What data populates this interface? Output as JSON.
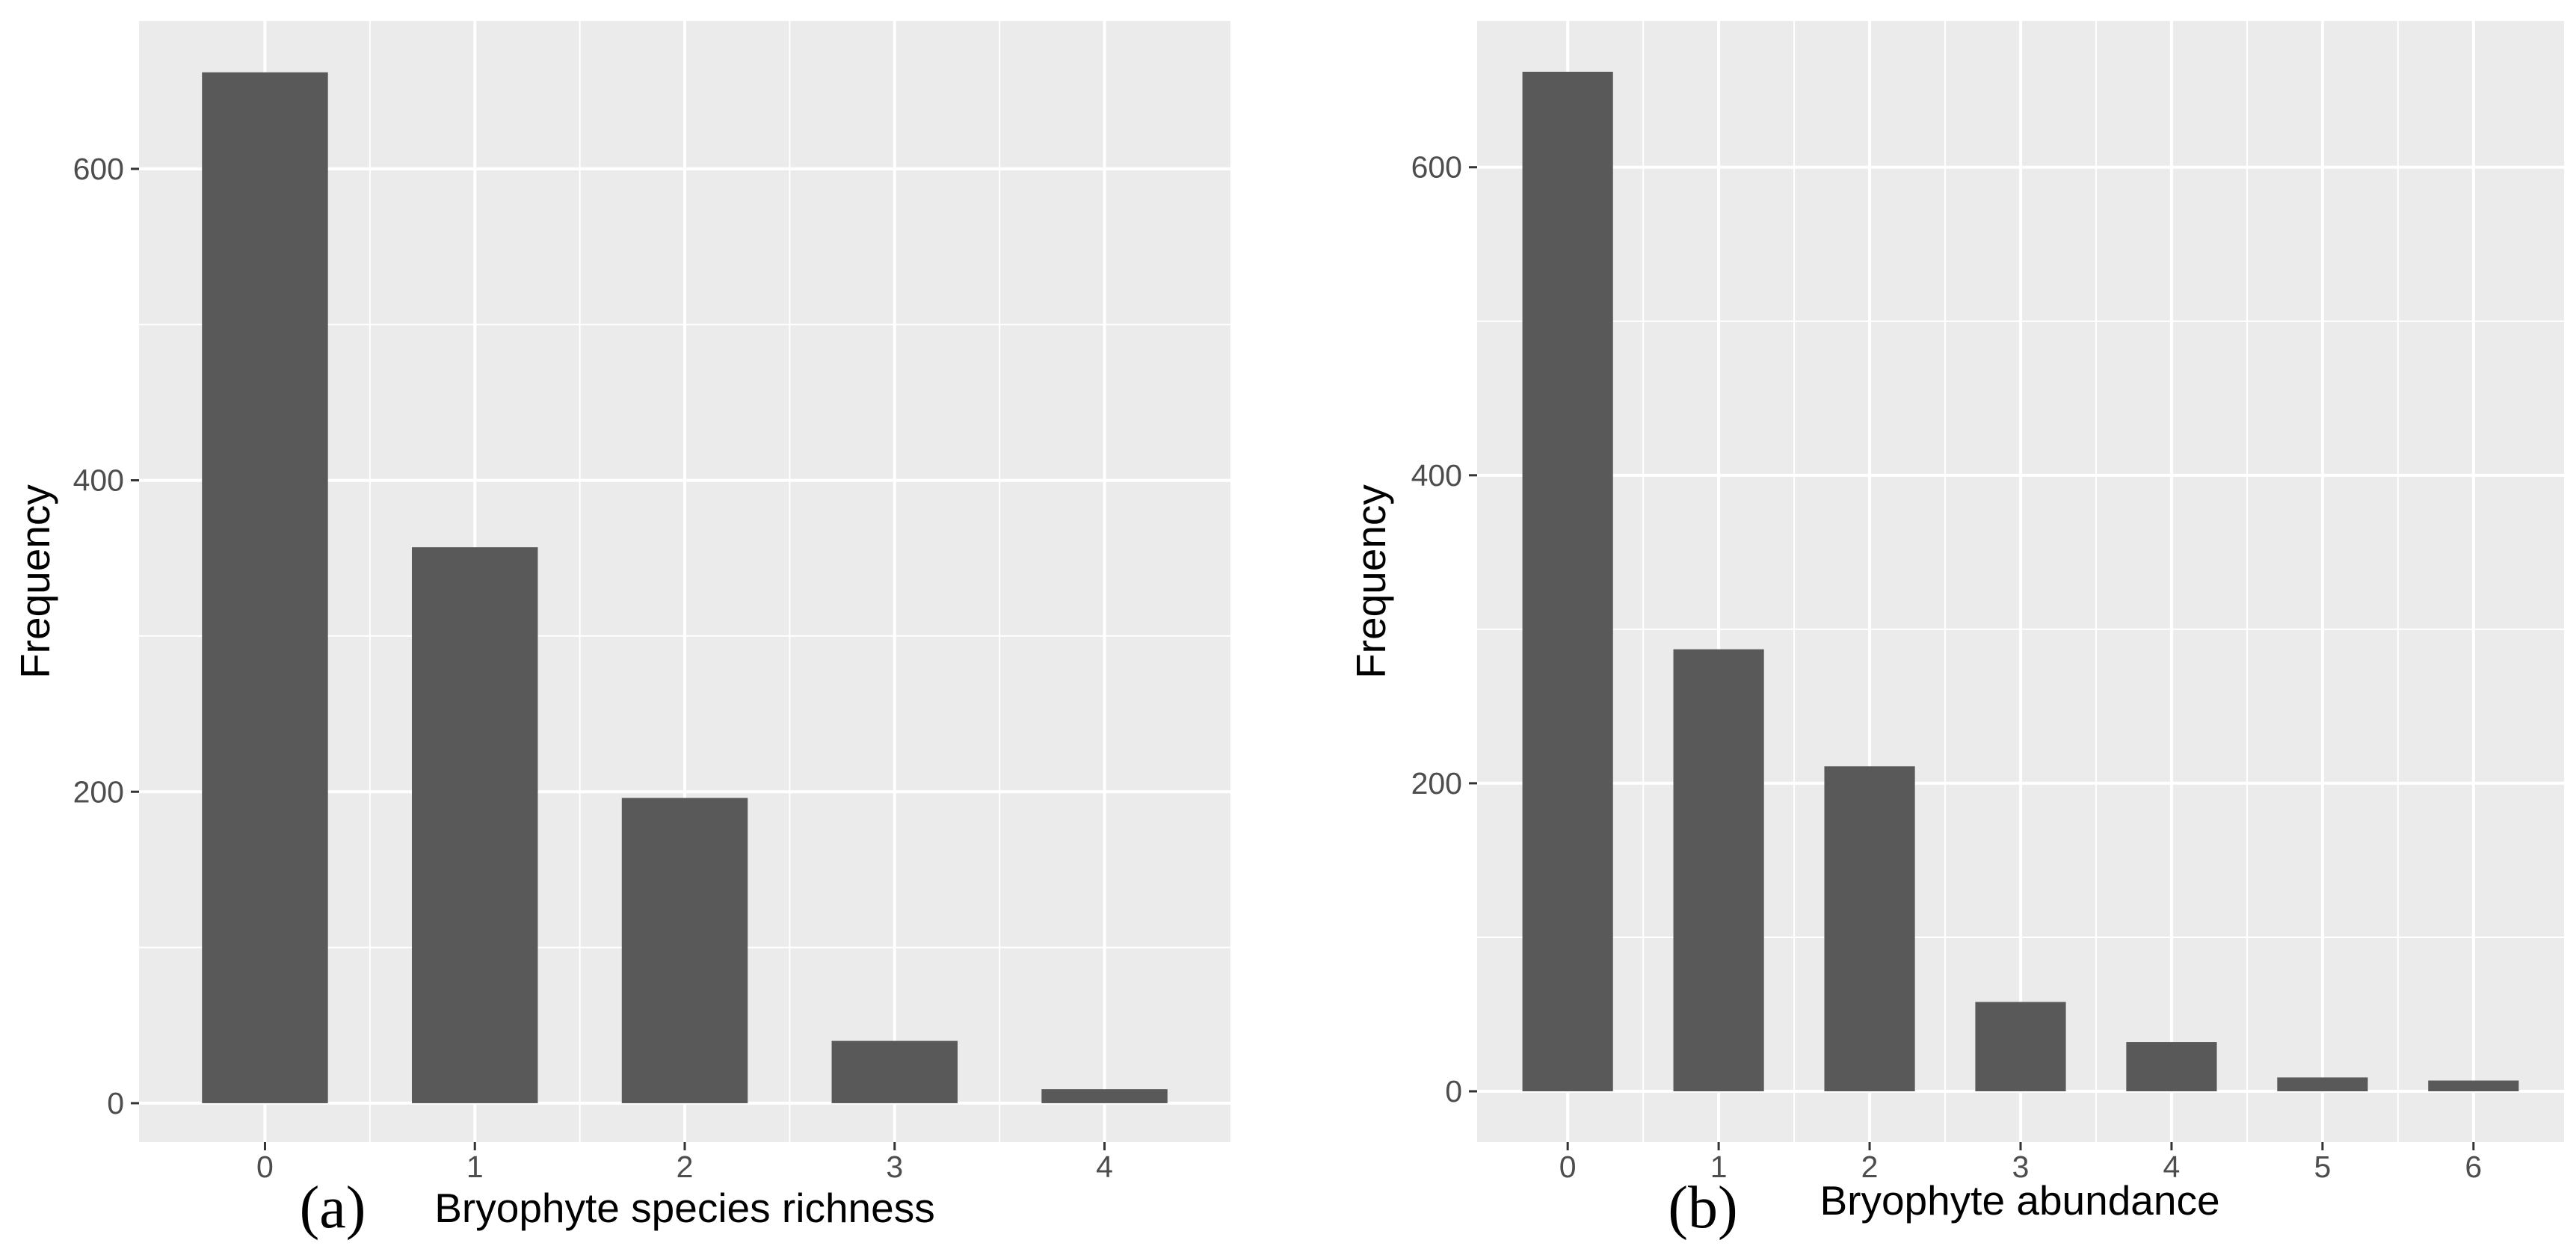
{
  "colors": {
    "panel_background": "#ebebeb",
    "grid_line": "#ffffff",
    "bar_fill": "#595959",
    "tick_text": "#4d4d4d",
    "axis_title": "#000000"
  },
  "chart_data": [
    {
      "type": "bar",
      "panel_label": "(a)",
      "xlabel": "Bryophyte species richness",
      "ylabel": "Frequency",
      "categories": [
        "0",
        "1",
        "2",
        "3",
        "4"
      ],
      "values": [
        662,
        357,
        196,
        40,
        9
      ],
      "ylim": [
        -25,
        695
      ],
      "yticks": [
        0,
        200,
        400,
        600
      ],
      "yticks_labels": [
        "0",
        "200",
        "400",
        "600"
      ],
      "grid": true,
      "legend": "none"
    },
    {
      "type": "bar",
      "panel_label": "(b)",
      "xlabel": "Bryophyte abundance",
      "ylabel": "Frequency",
      "categories": [
        "0",
        "1",
        "2",
        "3",
        "4",
        "5",
        "6"
      ],
      "values": [
        662,
        287,
        211,
        58,
        32,
        9,
        7
      ],
      "ylim": [
        -33,
        695
      ],
      "yticks": [
        0,
        200,
        400,
        600
      ],
      "yticks_labels": [
        "0",
        "200",
        "400",
        "600"
      ],
      "grid": true,
      "legend": "none"
    }
  ]
}
